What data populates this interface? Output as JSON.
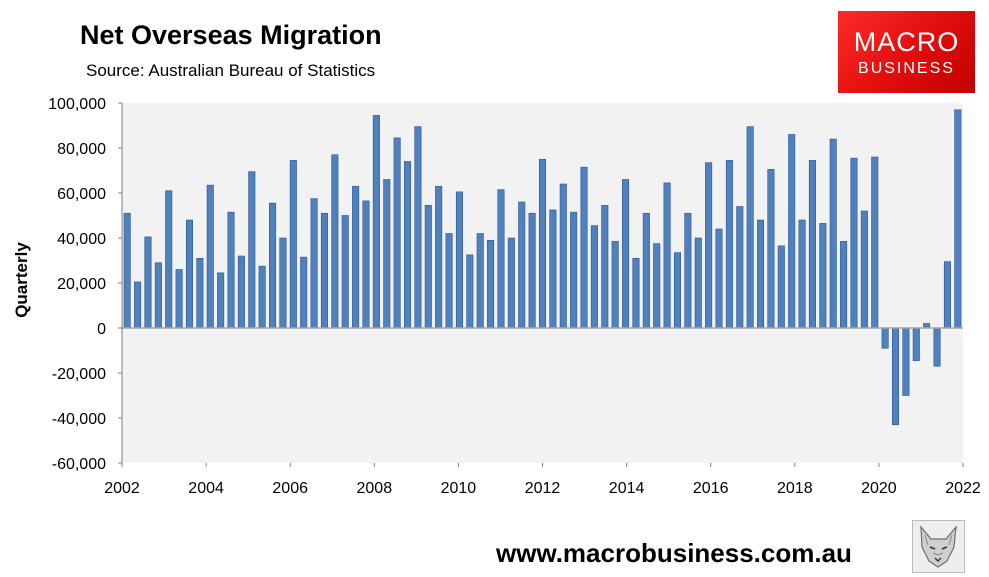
{
  "header": {
    "title": "Net Overseas Migration",
    "subtitle": "Source: Australian Bureau of Statistics"
  },
  "logo": {
    "line1": "MACRO",
    "line2": "BUSINESS",
    "color": "#e8121a"
  },
  "footer": {
    "url": "www.macrobusiness.com.au",
    "icon": "wolf-icon"
  },
  "chart_data": {
    "type": "bar",
    "title": "Net Overseas Migration",
    "ylabel": "Quarterly",
    "xlabel": "",
    "ylim": [
      -60000,
      100000
    ],
    "yticks": [
      100000,
      80000,
      60000,
      40000,
      20000,
      0,
      -20000,
      -40000,
      -60000
    ],
    "ytick_labels": [
      "100,000",
      "80,000",
      "60,000",
      "40,000",
      "20,000",
      "0",
      "-20,000",
      "-40,000",
      "-60,000"
    ],
    "xlim": [
      2002,
      2022
    ],
    "xtick_labels": [
      "2002",
      "2004",
      "2006",
      "2008",
      "2010",
      "2012",
      "2014",
      "2016",
      "2018",
      "2020",
      "2022"
    ],
    "grid": false,
    "legend": "none",
    "colors": {
      "bar": "#4f81bd",
      "bar_edge": "#2f5597",
      "plot_bg": "#f2f2f2"
    },
    "series": [
      {
        "values": [
          51000,
          20500,
          40500,
          29000,
          61000,
          26000,
          48000,
          31000,
          63500,
          24500,
          51500,
          32000,
          69500,
          27500,
          55500,
          40000,
          74500,
          31500,
          57500,
          51000,
          77000,
          50000,
          63000,
          56500,
          94500,
          66000,
          84500,
          74000,
          89500,
          54500,
          63000,
          42000,
          60500,
          32500,
          42000,
          39000,
          61500,
          40000,
          56000,
          51000,
          75000,
          52500,
          64000,
          51500,
          71500,
          45500,
          54500,
          38500,
          66000,
          31000,
          51000,
          37500,
          64500,
          33500,
          51000,
          40000,
          73500,
          44000,
          74500,
          54000,
          89500,
          48000,
          70500,
          36500,
          86000,
          48000,
          74500,
          46500,
          84000,
          38500,
          75500,
          52000,
          76000,
          -9000,
          -43000,
          -30000,
          -14500,
          2000,
          -17000,
          29500,
          97000
        ]
      }
    ]
  }
}
